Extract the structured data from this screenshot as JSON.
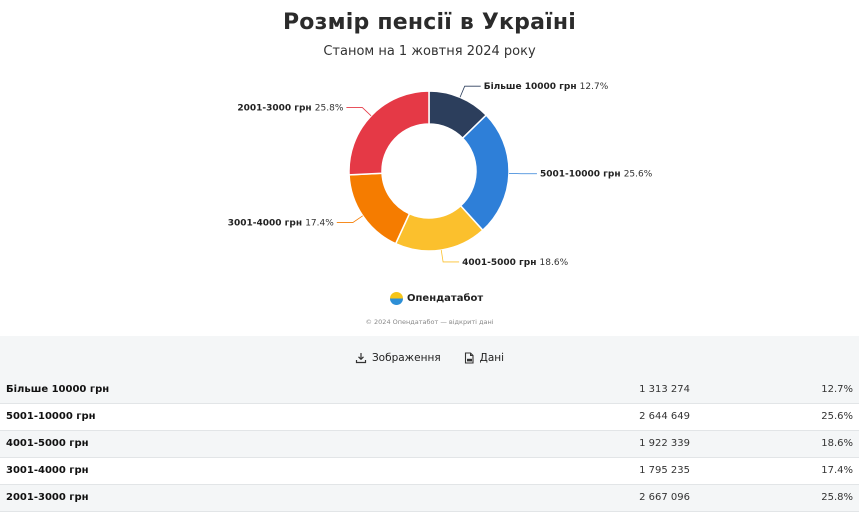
{
  "header": {
    "title": "Розмір пенсії в Україні",
    "subtitle": "Станом на 1 жовтня 2024 року"
  },
  "chart_data": {
    "type": "pie",
    "donut": true,
    "categories": [
      "Більше 10000 грн",
      "5001-10000 грн",
      "4001-5000 грн",
      "3001-4000 грн",
      "2001-3000 грн"
    ],
    "values": [
      12.7,
      25.6,
      18.6,
      17.4,
      25.8
    ],
    "value_labels": [
      "12.7%",
      "25.6%",
      "18.6%",
      "17.4%",
      "25.8%"
    ],
    "colors": [
      "#2c3e5c",
      "#2e7fd8",
      "#fbc02d",
      "#f57c00",
      "#e53946"
    ],
    "legend": "none",
    "title": "Розмір пенсії в Україні",
    "subtitle": "Станом на 1 жовтня 2024 року"
  },
  "brand": {
    "name": "Опендатабот",
    "icon": "opendatabot-logo"
  },
  "footer": {
    "copyright": "© 2024 Опендатабот — відкриті дані"
  },
  "actions": {
    "image_label": "Зображення",
    "data_label": "Дані"
  },
  "table": {
    "rows": [
      {
        "category": "Більше 10000 грн",
        "count": "1 313 274",
        "percent": "12.7%"
      },
      {
        "category": "5001-10000 грн",
        "count": "2 644 649",
        "percent": "25.6%"
      },
      {
        "category": "4001-5000 грн",
        "count": "1 922 339",
        "percent": "18.6%"
      },
      {
        "category": "3001-4000 грн",
        "count": "1 795 235",
        "percent": "17.4%"
      },
      {
        "category": "2001-3000 грн",
        "count": "2 667 096",
        "percent": "25.8%"
      }
    ]
  }
}
